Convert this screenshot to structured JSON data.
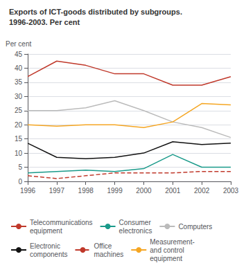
{
  "chart_data": {
    "type": "line",
    "title": "Exports of ICT-goods distributed by subgroups.",
    "subtitle": "1996-2003. Per cent",
    "y_label": "Per cent",
    "x": [
      1996,
      1997,
      1998,
      1999,
      2000,
      2001,
      2002,
      2003
    ],
    "xlim": [
      1996,
      2003
    ],
    "xticks": [
      1996,
      1997,
      1998,
      1999,
      2000,
      2001,
      2002,
      2003
    ],
    "ylim": [
      0,
      45
    ],
    "yticks": [
      0,
      5,
      10,
      15,
      20,
      25,
      30,
      35,
      40,
      45
    ],
    "grid": true,
    "legend": "bottom",
    "series": [
      {
        "name": "Telecommunications\nequipment",
        "color": "#C0392B",
        "line_style": "solid",
        "values": [
          37,
          42.5,
          41,
          38,
          38,
          34,
          34,
          37
        ]
      },
      {
        "name": "Consumer\nelectronics",
        "color": "#1A9A8A",
        "line_style": "solid",
        "values": [
          3,
          3.5,
          4,
          3.5,
          4.5,
          9.5,
          5,
          5
        ]
      },
      {
        "name": "Computers",
        "color": "#BBBBBB",
        "line_style": "solid",
        "values": [
          25,
          25,
          26,
          28.5,
          25,
          21,
          19,
          15.5
        ]
      },
      {
        "name": "Electronic\ncomponents",
        "color": "#111111",
        "line_style": "solid",
        "values": [
          13.5,
          8.5,
          8,
          8.5,
          10,
          14,
          13,
          13.5
        ]
      },
      {
        "name": "Office\nmachines",
        "color": "#C0392B",
        "line_style": "dashed",
        "values": [
          2,
          1,
          2,
          3,
          3,
          3,
          3.5,
          3.5
        ]
      },
      {
        "name": "Measurement-\nand control\nequipment",
        "color": "#F5A623",
        "line_style": "solid",
        "values": [
          20,
          19.5,
          20,
          20,
          19,
          21,
          27.5,
          27
        ]
      }
    ]
  }
}
